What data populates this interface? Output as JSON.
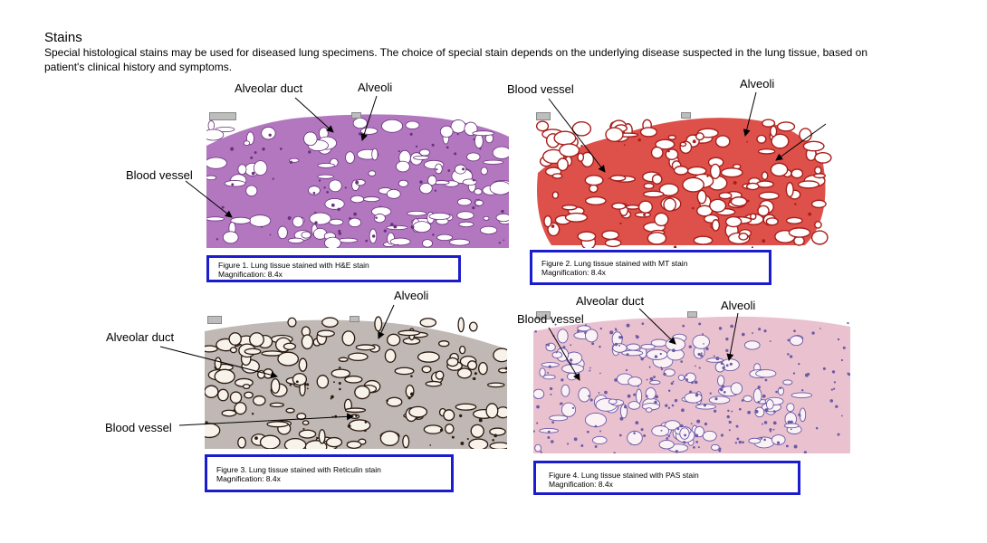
{
  "page": {
    "title": "Stains",
    "intro": "Special histological stains may be used for diseased lung specimens. The choice of special stain depends on the underlying disease suspected in the lung tissue, based on patient's clinical history and symptoms."
  },
  "figures": [
    {
      "caption_line1": "Figure 1. Lung tissue stained with H&E stain",
      "caption_line2": "Magnification: 8.4x",
      "labels": {
        "alveolar_duct": "Alveolar duct",
        "alveoli": "Alveoli",
        "blood_vessel": "Blood vessel"
      },
      "colors": {
        "bg": "#dcc6e6",
        "tissue": "#a45fb4",
        "dark": "#6b2f7e"
      }
    },
    {
      "caption_line1": "Figure 2. Lung tissue stained with MT stain",
      "caption_line2": "Magnification: 8.4x",
      "labels": {
        "blood_vessel": "Blood vessel",
        "alveoli": "Alveoli"
      },
      "colors": {
        "bg": "#ffffff",
        "tissue": "#d8322a",
        "dark": "#a81e1a"
      }
    },
    {
      "caption_line1": "Figure 3. Lung tissue stained with Reticulin stain",
      "caption_line2": "Magnification: 8.4x",
      "labels": {
        "alveoli": "Alveoli",
        "alveolar_duct": "Alveolar duct",
        "blood_vessel": "Blood vessel"
      },
      "colors": {
        "bg": "#dccfc0",
        "tissue": "#4a3528",
        "dark": "#2a1a12"
      }
    },
    {
      "caption_line1": "Figure 4. Lung tissue stained with PAS stain",
      "caption_line2": "Magnification: 8.4x",
      "labels": {
        "alveolar_duct": "Alveolar duct",
        "alveoli": "Alveoli",
        "blood_vessel": "Blood vessel"
      },
      "colors": {
        "bg": "#f3dde6",
        "tissue": "#d98ea8",
        "dark": "#6a5aa8"
      }
    }
  ],
  "colors": {
    "caption_border": "#1c1ccf",
    "arrow": "#000000"
  }
}
